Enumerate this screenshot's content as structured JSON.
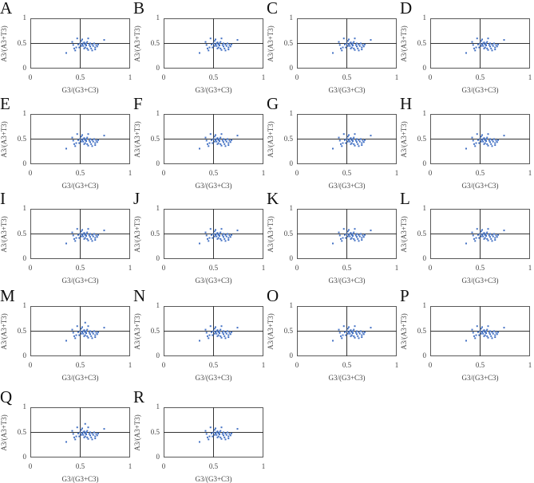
{
  "chart_data": [
    {
      "panel": "A",
      "type": "scatter",
      "xlabel": "G3/(G3+C3)",
      "ylabel": "A3/(A3+T3)",
      "xlim": [
        0,
        1
      ],
      "ylim": [
        0,
        1
      ],
      "xticks": [
        "0",
        "0.5",
        "1"
      ],
      "yticks": [
        "0",
        "0.5",
        "1"
      ],
      "reference_lines": {
        "x": 0.5,
        "y": 0.5
      },
      "color": "#4472C4",
      "x": [
        0.36,
        0.42,
        0.43,
        0.44,
        0.45,
        0.46,
        0.47,
        0.49,
        0.5,
        0.51,
        0.52,
        0.52,
        0.53,
        0.53,
        0.54,
        0.55,
        0.55,
        0.56,
        0.56,
        0.57,
        0.57,
        0.58,
        0.58,
        0.59,
        0.6,
        0.61,
        0.62,
        0.62,
        0.63,
        0.64,
        0.65,
        0.65,
        0.66,
        0.67,
        0.68,
        0.74,
        0.51,
        0.54,
        0.6,
        0.48
      ],
      "y": [
        0.31,
        0.53,
        0.47,
        0.4,
        0.36,
        0.42,
        0.6,
        0.42,
        0.5,
        0.55,
        0.48,
        0.58,
        0.5,
        0.45,
        0.52,
        0.48,
        0.42,
        0.5,
        0.46,
        0.4,
        0.53,
        0.37,
        0.6,
        0.47,
        0.44,
        0.4,
        0.48,
        0.36,
        0.45,
        0.5,
        0.42,
        0.38,
        0.47,
        0.44,
        0.48,
        0.57,
        0.45,
        0.4,
        0.5,
        0.48
      ]
    },
    {
      "panel": "B"
    },
    {
      "panel": "C"
    },
    {
      "panel": "D"
    },
    {
      "panel": "E"
    },
    {
      "panel": "F"
    },
    {
      "panel": "G"
    },
    {
      "panel": "H"
    },
    {
      "panel": "I"
    },
    {
      "panel": "J"
    },
    {
      "panel": "K"
    },
    {
      "panel": "L"
    },
    {
      "panel": "M",
      "extra_point": [
        0.55,
        0.67
      ]
    },
    {
      "panel": "N"
    },
    {
      "panel": "O"
    },
    {
      "panel": "P"
    },
    {
      "panel": "Q",
      "extra_point": [
        0.55,
        0.67
      ]
    },
    {
      "panel": "R"
    }
  ]
}
